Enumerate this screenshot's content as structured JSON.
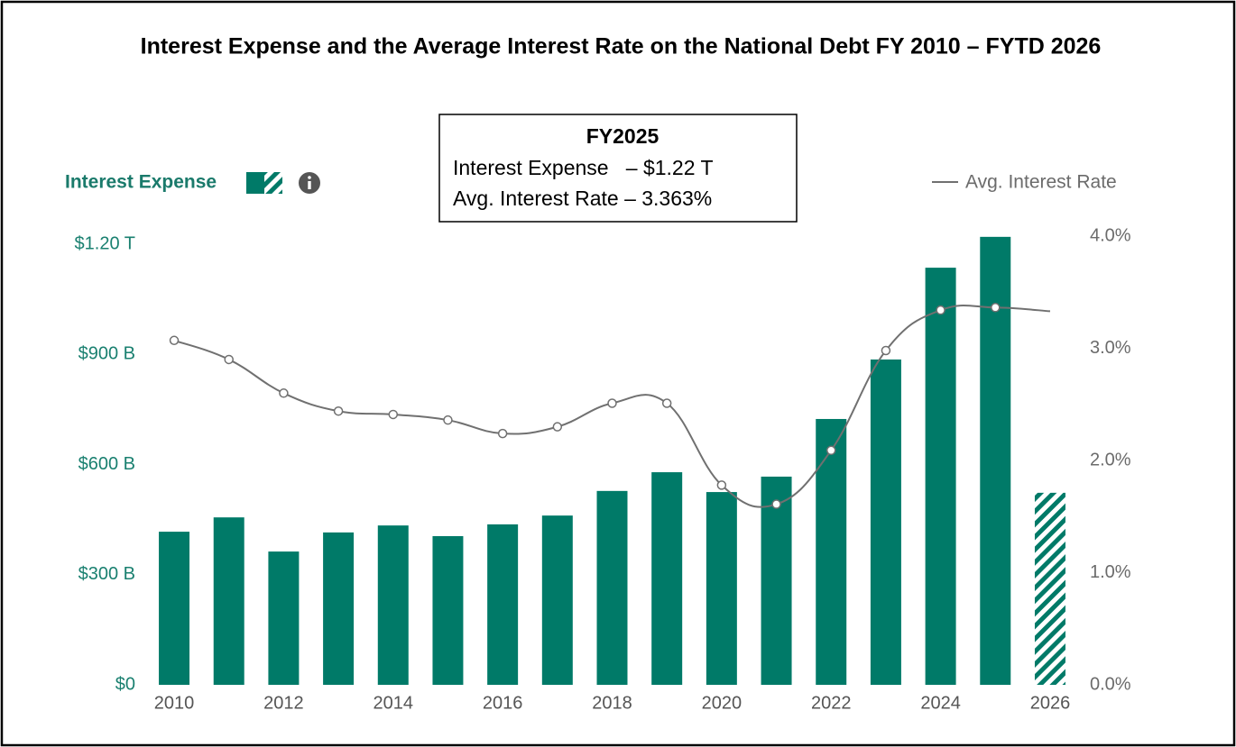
{
  "chart_data": {
    "type": "bar",
    "title": "Interest Expense and the Average Interest Rate on the National Debt FY 2010 – FYTD 2026",
    "annotation": {
      "title": "FY2025",
      "lines": [
        "Interest Expense   – $1.22 T",
        "Avg. Interest Rate – 3.363%"
      ]
    },
    "x": [
      2010,
      2011,
      2012,
      2013,
      2014,
      2015,
      2016,
      2017,
      2018,
      2019,
      2020,
      2021,
      2022,
      2023,
      2024,
      2025,
      2026
    ],
    "xlim": [
      2009.5,
      2026.5
    ],
    "xticks": [
      2010,
      2012,
      2014,
      2016,
      2018,
      2020,
      2022,
      2024,
      2026
    ],
    "ylim": [
      0,
      1200
    ],
    "yticks": [
      {
        "value": 0,
        "label": "$0"
      },
      {
        "value": 300,
        "label": "$300 B"
      },
      {
        "value": 600,
        "label": "$600 B"
      },
      {
        "value": 900,
        "label": "$900 B"
      },
      {
        "value": 1200,
        "label": "$1.20 T"
      }
    ],
    "y2lim": [
      0,
      4
    ],
    "y2ticks": [
      {
        "value": 0,
        "label": "0.0%"
      },
      {
        "value": 1,
        "label": "1.0%"
      },
      {
        "value": 2,
        "label": "2.0%"
      },
      {
        "value": 3,
        "label": "3.0%"
      },
      {
        "value": 4,
        "label": "4.0%"
      }
    ],
    "grid": false,
    "series": [
      {
        "name": "Interest Expense",
        "type": "bar",
        "color": "#007a68",
        "hatched_x": [
          2026
        ],
        "values": [
          417,
          456,
          363,
          415,
          434,
          405,
          437,
          461,
          528,
          579,
          525,
          567,
          724,
          886,
          1136,
          1220,
          523
        ]
      },
      {
        "name": "Avg. Interest Rate",
        "type": "line",
        "axis": "y2",
        "color": "#707070",
        "unmarked_x": [
          2026
        ],
        "values": [
          3.07,
          2.9,
          2.6,
          2.44,
          2.41,
          2.36,
          2.24,
          2.3,
          2.51,
          2.51,
          1.78,
          1.61,
          2.09,
          2.98,
          3.34,
          3.363,
          3.33
        ]
      }
    ]
  }
}
